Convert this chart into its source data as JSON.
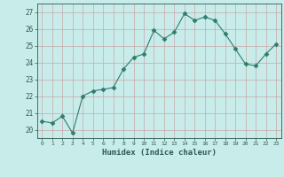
{
  "x": [
    0,
    1,
    2,
    3,
    4,
    5,
    6,
    7,
    8,
    9,
    10,
    11,
    12,
    13,
    14,
    15,
    16,
    17,
    18,
    19,
    20,
    21,
    22,
    23
  ],
  "y": [
    20.5,
    20.4,
    20.8,
    19.8,
    22.0,
    22.3,
    22.4,
    22.5,
    23.6,
    24.3,
    24.5,
    25.9,
    25.4,
    25.8,
    26.9,
    26.5,
    26.7,
    26.5,
    25.7,
    24.8,
    23.9,
    23.8,
    24.5,
    25.1
  ],
  "line_color": "#2d7d6e",
  "marker": "D",
  "marker_size": 2.5,
  "bg_color": "#c8ecea",
  "grid_color": "#c8a8a8",
  "tick_color": "#2d5a52",
  "xlabel": "Humidex (Indice chaleur)",
  "ylim": [
    19.5,
    27.5
  ],
  "xlim": [
    -0.5,
    23.5
  ],
  "yticks": [
    20,
    21,
    22,
    23,
    24,
    25,
    26,
    27
  ],
  "xticks": [
    0,
    1,
    2,
    3,
    4,
    5,
    6,
    7,
    8,
    9,
    10,
    11,
    12,
    13,
    14,
    15,
    16,
    17,
    18,
    19,
    20,
    21,
    22,
    23
  ]
}
